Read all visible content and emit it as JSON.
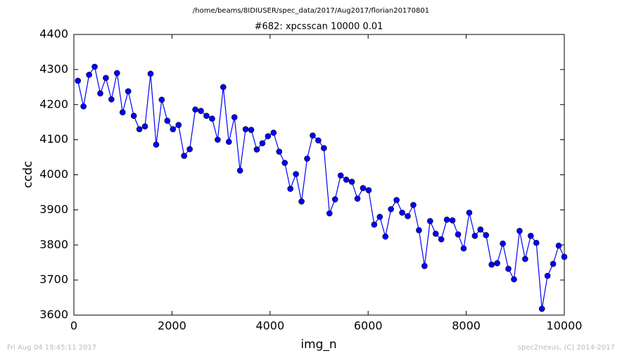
{
  "chart_data": {
    "type": "line",
    "suptitle": "/home/beams/8IDIUSER/spec_data/2017/Aug2017/florian20170801",
    "title": "#682: xpcsscan 10000 0.01",
    "xlabel": "img_n",
    "ylabel": "ccdc",
    "color": "#0000ff",
    "marker": true,
    "x": [
      82,
      196,
      310,
      424,
      538,
      652,
      766,
      880,
      994,
      1108,
      1222,
      1336,
      1450,
      1564,
      1678,
      1792,
      1906,
      2020,
      2134,
      2248,
      2362,
      2476,
      2590,
      2704,
      2818,
      2932,
      3046,
      3160,
      3274,
      3388,
      3502,
      3616,
      3730,
      3844,
      3958,
      4072,
      4186,
      4300,
      4414,
      4528,
      4642,
      4756,
      4870,
      4984,
      5098,
      5212,
      5326,
      5440,
      5554,
      5668,
      5782,
      5896,
      6010,
      6124,
      6238,
      6352,
      6466,
      6580,
      6694,
      6808,
      6922,
      7036,
      7150,
      7264,
      7378,
      7492,
      7606,
      7720,
      7834,
      7948,
      8062,
      8176,
      8290,
      8404,
      8518,
      8632,
      8746,
      8860,
      8974,
      9088,
      9202,
      9316,
      9430,
      9544,
      9658,
      9772,
      9886,
      10000
    ],
    "values": [
      4268,
      4195,
      4285,
      4308,
      4232,
      4276,
      4215,
      4290,
      4178,
      4238,
      4168,
      4130,
      4138,
      4288,
      4086,
      4214,
      4154,
      4130,
      4142,
      4054,
      4073,
      4186,
      4182,
      4168,
      4160,
      4100,
      4250,
      4094,
      4164,
      4012,
      4130,
      4128,
      4072,
      4090,
      4110,
      4120,
      4066,
      4034,
      3960,
      4002,
      3924,
      4046,
      4112,
      4098,
      4076,
      3890,
      3930,
      3998,
      3986,
      3980,
      3932,
      3962,
      3956,
      3858,
      3880,
      3824,
      3902,
      3928,
      3892,
      3882,
      3914,
      3842,
      3740,
      3868,
      3832,
      3816,
      3872,
      3870,
      3830,
      3790,
      3892,
      3826,
      3844,
      3828,
      3744,
      3748,
      3804,
      3732,
      3702,
      3840,
      3760,
      3826,
      3806,
      3618,
      3712,
      3746,
      3798,
      3766
    ],
    "xlim": [
      0,
      10000
    ],
    "xticks": [
      0,
      2000,
      4000,
      6000,
      8000,
      10000
    ],
    "ylim": [
      3600,
      4400
    ],
    "yticks": [
      3600,
      3700,
      3800,
      3900,
      4000,
      4100,
      4200,
      4300,
      4400
    ],
    "grid": false
  },
  "footer": {
    "left": "Fri Aug 04 19:45:11 2017",
    "right": "spec2nexus, (C) 2014-2017"
  }
}
